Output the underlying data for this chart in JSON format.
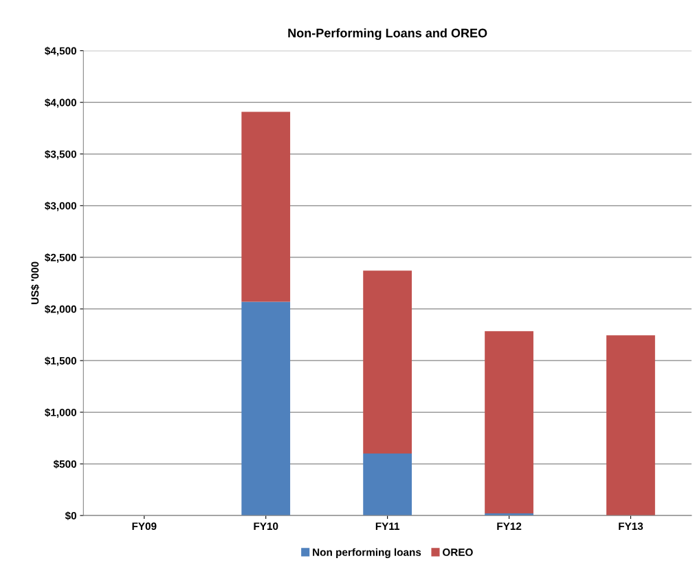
{
  "chart_data": {
    "type": "bar",
    "stacked": true,
    "title": "Non-Performing Loans and OREO",
    "ylabel": "US$ '000",
    "categories": [
      "FY09",
      "FY10",
      "FY11",
      "FY12",
      "FY13"
    ],
    "series": [
      {
        "name": "Non performing loans",
        "color": "#4f81bd",
        "values": [
          0,
          2070,
          600,
          20,
          0
        ]
      },
      {
        "name": "OREO",
        "color": "#c0504d",
        "values": [
          0,
          1838,
          1770,
          1764,
          1744
        ]
      }
    ],
    "ylim": [
      0,
      4500
    ],
    "yticks": [
      {
        "value": 0,
        "label": "$0"
      },
      {
        "value": 500,
        "label": "$500"
      },
      {
        "value": 1000,
        "label": "$1,000"
      },
      {
        "value": 1500,
        "label": "$1,500"
      },
      {
        "value": 2000,
        "label": "$2,000"
      },
      {
        "value": 2500,
        "label": "$2,500"
      },
      {
        "value": 3000,
        "label": "$3,000"
      },
      {
        "value": 3500,
        "label": "$3,500"
      },
      {
        "value": 4000,
        "label": "$4,000"
      },
      {
        "value": 4500,
        "label": "$4,500"
      }
    ],
    "grid": "y",
    "legend": "bottom"
  }
}
